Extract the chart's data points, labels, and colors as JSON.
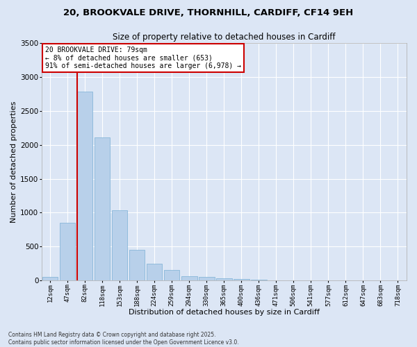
{
  "title_line1": "20, BROOKVALE DRIVE, THORNHILL, CARDIFF, CF14 9EH",
  "title_line2": "Size of property relative to detached houses in Cardiff",
  "xlabel": "Distribution of detached houses by size in Cardiff",
  "ylabel": "Number of detached properties",
  "bar_color": "#b8d0ea",
  "bar_edge_color": "#7aafd4",
  "background_color": "#dce6f5",
  "grid_color": "#ffffff",
  "annotation_box_color": "#cc0000",
  "vline_color": "#cc0000",
  "fig_bg_color": "#dce6f5",
  "categories": [
    "12sqm",
    "47sqm",
    "82sqm",
    "118sqm",
    "153sqm",
    "188sqm",
    "224sqm",
    "259sqm",
    "294sqm",
    "330sqm",
    "365sqm",
    "400sqm",
    "436sqm",
    "471sqm",
    "506sqm",
    "541sqm",
    "577sqm",
    "612sqm",
    "647sqm",
    "683sqm",
    "718sqm"
  ],
  "values": [
    55,
    850,
    2780,
    2110,
    1040,
    450,
    250,
    160,
    65,
    55,
    35,
    20,
    10,
    5,
    3,
    2,
    1,
    1,
    1,
    0,
    0
  ],
  "ylim": [
    0,
    3500
  ],
  "yticks": [
    0,
    500,
    1000,
    1500,
    2000,
    2500,
    3000,
    3500
  ],
  "vline_x_index": 2,
  "annotation_text_line1": "20 BROOKVALE DRIVE: 79sqm",
  "annotation_text_line2": "← 8% of detached houses are smaller (653)",
  "annotation_text_line3": "91% of semi-detached houses are larger (6,978) →",
  "footer_line1": "Contains HM Land Registry data © Crown copyright and database right 2025.",
  "footer_line2": "Contains public sector information licensed under the Open Government Licence v3.0."
}
